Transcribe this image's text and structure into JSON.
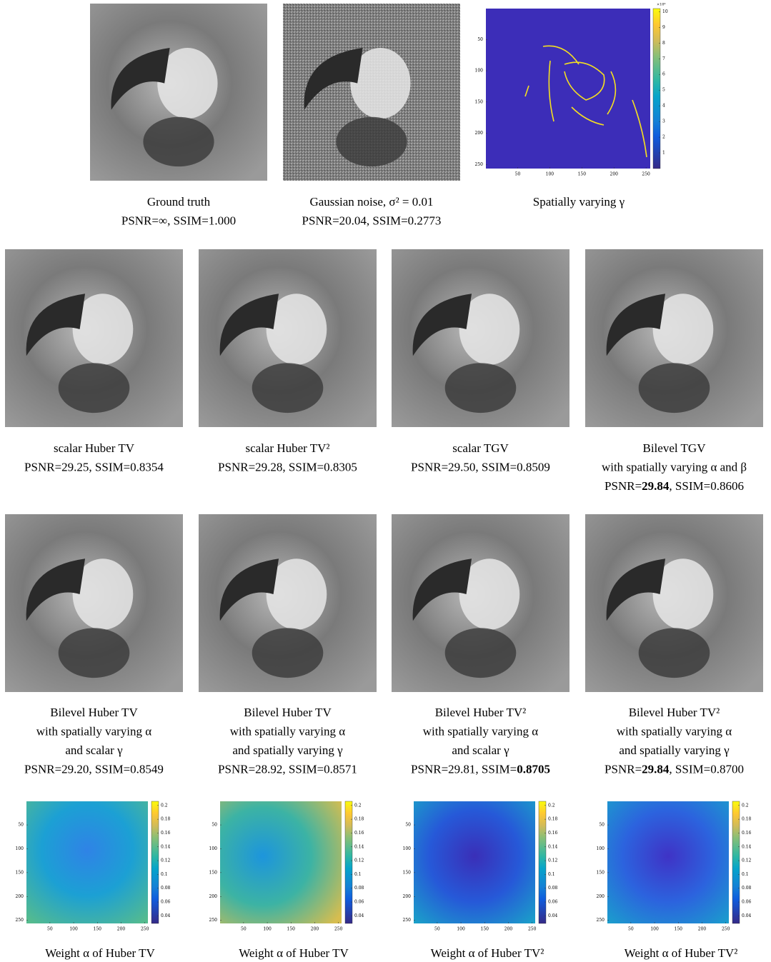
{
  "panels": [
    {
      "caption": [
        [
          "Ground truth"
        ],
        [
          "PSNR=∞, SSIM=1.000"
        ]
      ]
    },
    {
      "caption": [
        [
          "Gaussian noise, σ² = 0.01"
        ],
        [
          "PSNR=20.04, SSIM=0.2773"
        ]
      ]
    },
    {
      "caption": [
        [
          "Spatially varying γ"
        ]
      ]
    },
    {
      "caption": [
        [
          "scalar Huber TV"
        ],
        [
          "PSNR=29.25, SSIM=0.8354"
        ]
      ]
    },
    {
      "caption": [
        [
          "scalar Huber TV²"
        ],
        [
          "PSNR=29.28, SSIM=0.8305"
        ]
      ]
    },
    {
      "caption": [
        [
          "scalar TGV"
        ],
        [
          "PSNR=29.50, SSIM=0.8509"
        ]
      ]
    },
    {
      "caption": [
        [
          "Bilevel TGV"
        ],
        [
          "with spatially varying α and β"
        ],
        [
          "PSNR=",
          {
            "bold": "29.84"
          },
          ", SSIM=0.8606"
        ]
      ]
    },
    {
      "caption": [
        [
          "Bilevel Huber TV"
        ],
        [
          "with spatially varying α"
        ],
        [
          "and scalar γ"
        ],
        [
          "PSNR=29.20, SSIM=0.8549"
        ]
      ]
    },
    {
      "caption": [
        [
          "Bilevel Huber TV"
        ],
        [
          "with spatially varying α"
        ],
        [
          "and spatially varying γ"
        ],
        [
          "PSNR=28.92, SSIM=0.8571"
        ]
      ]
    },
    {
      "caption": [
        [
          "Bilevel Huber TV²"
        ],
        [
          "with spatially varying α"
        ],
        [
          "and scalar γ"
        ],
        [
          "PSNR=29.81, SSIM=",
          {
            "bold": "0.8705"
          }
        ]
      ]
    },
    {
      "caption": [
        [
          "Bilevel Huber TV²"
        ],
        [
          "with spatially varying α"
        ],
        [
          "and spatially varying γ"
        ],
        [
          "PSNR=",
          {
            "bold": "29.84"
          },
          ", SSIM=0.8700"
        ]
      ]
    },
    {
      "caption": [
        [
          "Weight α of Huber TV"
        ]
      ]
    },
    {
      "caption": [
        [
          "Weight α of Huber TV"
        ]
      ]
    },
    {
      "caption": [
        [
          "Weight α of Huber TV²"
        ]
      ]
    },
    {
      "caption": [
        [
          "Weight α of Huber TV²"
        ]
      ]
    }
  ],
  "map_axis": {
    "lim": [
      0.5,
      256.5
    ],
    "ticks": [
      50,
      100,
      150,
      200,
      250
    ]
  },
  "gamma_colorbar": {
    "lim": [
      0,
      10.2
    ],
    "ticks": [
      1,
      2,
      3,
      4,
      5,
      6,
      7,
      8,
      9,
      10
    ],
    "exponent": "×10⁶"
  },
  "alpha_colorbar": {
    "lim": [
      0.029,
      0.206
    ],
    "ticks": [
      0.04,
      0.06,
      0.08,
      0.1,
      0.12,
      0.14,
      0.16,
      0.18,
      0.2
    ]
  }
}
